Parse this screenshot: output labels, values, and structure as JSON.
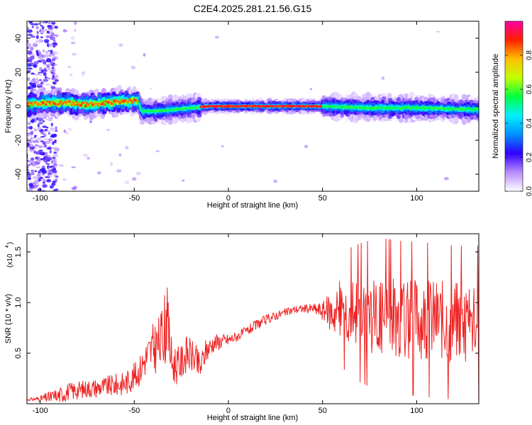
{
  "title": "C2E4.2025.281.21.56.G15",
  "chart_data": [
    {
      "type": "heatmap",
      "xlabel": "Height of straight line (km)",
      "ylabel": "Frequency (Hz)",
      "xlim": [
        -107,
        133
      ],
      "ylim": [
        -50,
        50
      ],
      "xticks": [
        "-100",
        "-50",
        "0",
        "50",
        "100"
      ],
      "xtick_values": [
        -100,
        -50,
        0,
        50,
        100
      ],
      "yticks": [
        "-40",
        "-20",
        "0",
        "20",
        "40"
      ],
      "ytick_values": [
        -40,
        -20,
        0,
        20,
        40
      ],
      "ridge": [
        {
          "x": -105,
          "y": 1
        },
        {
          "x": -95,
          "y": 2
        },
        {
          "x": -85,
          "y": 2
        },
        {
          "x": -75,
          "y": 1
        },
        {
          "x": -65,
          "y": 2
        },
        {
          "x": -55,
          "y": 3
        },
        {
          "x": -48,
          "y": 3
        },
        {
          "x": -46,
          "y": -3
        },
        {
          "x": -40,
          "y": -3
        },
        {
          "x": -30,
          "y": -2
        },
        {
          "x": -20,
          "y": -1
        },
        {
          "x": -10,
          "y": 0
        },
        {
          "x": 0,
          "y": 0
        },
        {
          "x": 25,
          "y": 0
        },
        {
          "x": 50,
          "y": 0
        },
        {
          "x": 75,
          "y": -1
        },
        {
          "x": 100,
          "y": -1
        },
        {
          "x": 133,
          "y": -2
        }
      ],
      "colorbar": {
        "label": "Normalized spectral amplitude",
        "range": [
          0,
          1
        ],
        "ticks": [
          "0.0",
          "0.2",
          "0.4",
          "0.6",
          "0.8"
        ],
        "tick_values": [
          0,
          0.2,
          0.4,
          0.6,
          0.8
        ],
        "colors": [
          "#ffffff",
          "#b98cff",
          "#3000ff",
          "#0090ff",
          "#00f0ff",
          "#00ff40",
          "#c0ff00",
          "#ffc000",
          "#ff2000",
          "#ff00a0"
        ]
      }
    },
    {
      "type": "line",
      "xlabel": "Height of straight line (km)",
      "ylabel": "SNR (10 * v/v)",
      "scale_label": "(x10",
      "scale_exp": "4",
      "xlim": [
        -107,
        133
      ],
      "ylim": [
        0,
        16800
      ],
      "xticks": [
        "-100",
        "-50",
        "0",
        "50",
        "100"
      ],
      "xtick_values": [
        -100,
        -50,
        0,
        50,
        100
      ],
      "yticks": [
        "0.5",
        "1.0",
        "1.5"
      ],
      "ytick_values": [
        5000,
        10000,
        15000
      ],
      "color": "#ee2222",
      "series": [
        {
          "x": [
            -107,
            -100,
            -92,
            -85,
            -75,
            -65,
            -55,
            -48,
            -44,
            -40,
            -36,
            -33,
            -30,
            -26,
            -22,
            -18,
            -15,
            -12,
            -8,
            -4,
            0,
            5,
            10,
            15,
            20,
            25,
            30,
            35,
            40,
            45,
            50,
            55,
            60,
            70,
            80,
            90,
            100,
            110,
            120,
            133
          ],
          "y": [
            400,
            500,
            700,
            1200,
            1500,
            1700,
            2000,
            3000,
            4500,
            5500,
            6000,
            9000,
            4000,
            3800,
            5000,
            4500,
            3500,
            5200,
            6000,
            6200,
            6300,
            6700,
            7200,
            7800,
            8300,
            8700,
            9000,
            9300,
            9400,
            9400,
            9200,
            9100,
            9300,
            9000,
            8800,
            8500,
            8400,
            8200,
            8000,
            8000
          ],
          "jitter": [
            100,
            300,
            800,
            900,
            900,
            1000,
            1200,
            1400,
            1800,
            2500,
            3000,
            3500,
            2200,
            1800,
            1800,
            1600,
            1500,
            1200,
            900,
            800,
            600,
            500,
            500,
            500,
            500,
            450,
            400,
            400,
            400,
            500,
            900,
            2200,
            3000,
            3600,
            4000,
            4000,
            4000,
            4000,
            4000,
            4000
          ]
        }
      ]
    }
  ]
}
